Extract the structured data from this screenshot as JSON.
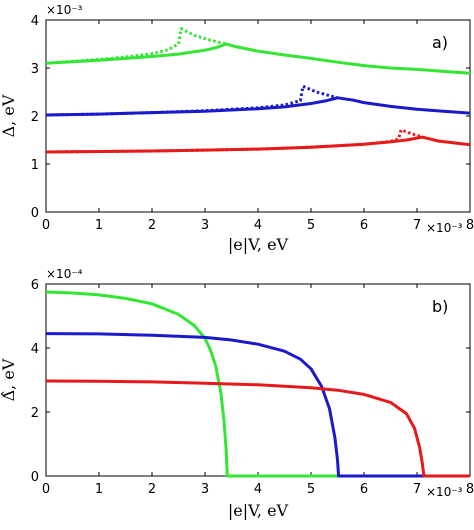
{
  "chart_data": [
    {
      "type": "line",
      "panel_label": "a)",
      "xlabel": "|e|V, eV",
      "ylabel": "Δ, eV",
      "x_exponent": "×10⁻³",
      "y_exponent": "×10⁻³",
      "xlim": [
        0,
        8
      ],
      "ylim": [
        0,
        4
      ],
      "xticks": [
        "0",
        "1",
        "2",
        "3",
        "4",
        "5",
        "6",
        "7",
        "8"
      ],
      "yticks": [
        "0",
        "1",
        "2",
        "3",
        "4"
      ],
      "series": [
        {
          "color": "#33e633",
          "style": "solid",
          "x": [
            0,
            0.5,
            1,
            1.5,
            2,
            2.5,
            3,
            3.2,
            3.4,
            3.6,
            4,
            4.5,
            5,
            5.5,
            6,
            6.5,
            7,
            7.5,
            8
          ],
          "y": [
            3.1,
            3.13,
            3.16,
            3.2,
            3.24,
            3.29,
            3.37,
            3.42,
            3.5,
            3.44,
            3.35,
            3.27,
            3.2,
            3.12,
            3.05,
            3.0,
            2.97,
            2.93,
            2.89
          ]
        },
        {
          "color": "#33e633",
          "style": "dotted",
          "x": [
            0,
            0.5,
            1,
            1.5,
            2,
            2.3,
            2.5,
            2.55,
            2.8,
            3.1,
            3.4
          ],
          "y": [
            3.1,
            3.14,
            3.18,
            3.23,
            3.3,
            3.38,
            3.5,
            3.82,
            3.68,
            3.58,
            3.5
          ]
        },
        {
          "color": "#1a1acc",
          "style": "solid",
          "x": [
            0,
            1,
            2,
            3,
            4,
            4.5,
            5,
            5.3,
            5.5,
            5.8,
            6,
            6.5,
            7,
            7.5,
            8
          ],
          "y": [
            2.02,
            2.04,
            2.07,
            2.1,
            2.15,
            2.19,
            2.26,
            2.32,
            2.38,
            2.33,
            2.28,
            2.2,
            2.14,
            2.1,
            2.06
          ]
        },
        {
          "color": "#1a1acc",
          "style": "dotted",
          "x": [
            0,
            1,
            2,
            3,
            4,
            4.5,
            4.8,
            4.85,
            5.1,
            5.5
          ],
          "y": [
            2.02,
            2.04,
            2.07,
            2.11,
            2.17,
            2.23,
            2.32,
            2.62,
            2.5,
            2.38
          ]
        },
        {
          "color": "#e61a1a",
          "style": "solid",
          "x": [
            0,
            1,
            2,
            3,
            4,
            5,
            6,
            6.5,
            6.8,
            7.1,
            7.4,
            7.7,
            8
          ],
          "y": [
            1.25,
            1.26,
            1.27,
            1.29,
            1.31,
            1.35,
            1.41,
            1.46,
            1.5,
            1.56,
            1.48,
            1.44,
            1.4
          ]
        },
        {
          "color": "#e61a1a",
          "style": "dotted",
          "x": [
            0,
            1,
            2,
            3,
            4,
            5,
            6,
            6.5,
            6.65,
            6.7,
            6.9,
            7.1
          ],
          "y": [
            1.25,
            1.26,
            1.27,
            1.29,
            1.31,
            1.35,
            1.41,
            1.47,
            1.52,
            1.71,
            1.63,
            1.56
          ]
        }
      ]
    },
    {
      "type": "line",
      "panel_label": "b)",
      "xlabel": "|e|V, eV",
      "ylabel": "Δ̂, eV",
      "x_exponent": "×10⁻³",
      "y_exponent": "×10⁻⁴",
      "xlim": [
        0,
        8
      ],
      "ylim": [
        0,
        6
      ],
      "xticks": [
        "0",
        "1",
        "2",
        "3",
        "4",
        "5",
        "6",
        "7",
        "8"
      ],
      "yticks": [
        "0",
        "2",
        "4",
        "6"
      ],
      "series": [
        {
          "color": "#33e633",
          "style": "solid",
          "x": [
            0,
            0.5,
            1,
            1.5,
            2,
            2.5,
            2.8,
            3.0,
            3.1,
            3.2,
            3.3,
            3.36,
            3.4,
            3.42,
            8
          ],
          "y": [
            5.75,
            5.72,
            5.66,
            5.55,
            5.38,
            5.05,
            4.7,
            4.3,
            3.95,
            3.45,
            2.6,
            1.7,
            0.8,
            0,
            0
          ]
        },
        {
          "color": "#1a1acc",
          "style": "solid",
          "x": [
            0,
            1,
            2,
            3,
            3.5,
            4,
            4.5,
            4.8,
            5.0,
            5.2,
            5.35,
            5.45,
            5.5,
            5.52,
            8
          ],
          "y": [
            4.45,
            4.44,
            4.4,
            4.33,
            4.25,
            4.12,
            3.9,
            3.65,
            3.35,
            2.8,
            2.1,
            1.2,
            0.5,
            0,
            0
          ]
        },
        {
          "color": "#e61a1a",
          "style": "solid",
          "x": [
            0,
            1,
            2,
            3,
            4,
            5,
            5.5,
            6,
            6.5,
            6.8,
            6.95,
            7.05,
            7.1,
            7.13,
            8
          ],
          "y": [
            2.97,
            2.96,
            2.94,
            2.9,
            2.85,
            2.76,
            2.68,
            2.55,
            2.3,
            1.95,
            1.5,
            0.9,
            0.4,
            0,
            0
          ]
        }
      ]
    }
  ]
}
